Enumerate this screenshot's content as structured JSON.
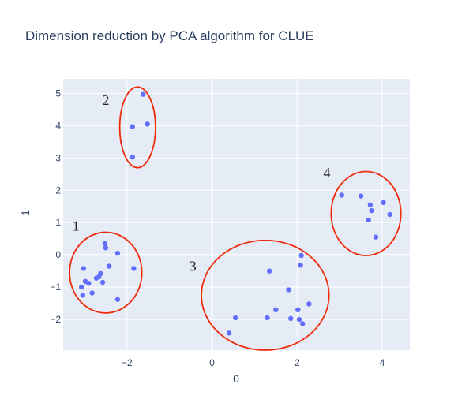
{
  "chart_data": {
    "type": "scatter",
    "title": "Dimension reduction by PCA algorithm for CLUE",
    "xlabel": "0",
    "ylabel": "1",
    "xlim": [
      -3.5,
      4.65
    ],
    "ylim": [
      -2.95,
      5.45
    ],
    "x_ticks": [
      -2,
      0,
      2,
      4
    ],
    "x_tick_labels": [
      "−2",
      "0",
      "2",
      "4"
    ],
    "y_ticks": [
      -2,
      -1,
      0,
      1,
      2,
      3,
      4,
      5
    ],
    "y_tick_labels": [
      "−2",
      "−1",
      "0",
      "1",
      "2",
      "3",
      "4",
      "5"
    ],
    "grid": true,
    "plot_bgcolor": "#e5ecf6",
    "marker_color": "#636efa",
    "annotation_color": "#ee2c0c",
    "series": [
      {
        "x": [
          -1.62,
          -1.52,
          -1.87,
          -1.87,
          -2.52,
          -2.5,
          -2.22,
          -2.42,
          -3.02,
          -2.98,
          -2.9,
          -2.62,
          -2.72,
          -2.66,
          -2.57,
          -2.82,
          -3.07,
          -3.04,
          -2.22,
          -1.84,
          1.35,
          1.3,
          1.5,
          1.8,
          2.02,
          2.08,
          2.1,
          2.28,
          1.85,
          2.05,
          2.13,
          0.55,
          0.4,
          3.05,
          3.5,
          3.72,
          3.75,
          4.03,
          4.18,
          3.68,
          3.85
        ],
        "y": [
          4.97,
          4.05,
          3.97,
          3.03,
          0.35,
          0.22,
          0.05,
          -0.35,
          -0.42,
          -0.82,
          -0.88,
          -0.58,
          -0.72,
          -0.68,
          -0.85,
          -1.18,
          -1.0,
          -1.25,
          -1.38,
          -0.42,
          -0.5,
          -1.95,
          -1.7,
          -1.08,
          -1.7,
          -0.32,
          -0.02,
          -1.52,
          -1.97,
          -2.0,
          -2.13,
          -1.95,
          -2.42,
          1.85,
          1.82,
          1.55,
          1.37,
          1.62,
          1.25,
          1.08,
          0.55
        ]
      }
    ],
    "annotations": {
      "groups": [
        {
          "label": "2",
          "cx": -1.75,
          "cy": 3.95,
          "rx": 0.42,
          "ry": 1.25,
          "label_x": -2.5,
          "label_y": 4.65
        },
        {
          "label": "1",
          "cx": -2.5,
          "cy": -0.55,
          "rx": 0.85,
          "ry": 1.25,
          "label_x": -3.2,
          "label_y": 0.75
        },
        {
          "label": "3",
          "cx": 1.25,
          "cy": -1.25,
          "rx": 1.5,
          "ry": 1.7,
          "label_x": -0.45,
          "label_y": -0.5
        },
        {
          "label": "4",
          "cx": 3.62,
          "cy": 1.28,
          "rx": 0.82,
          "ry": 1.3,
          "label_x": 2.7,
          "label_y": 2.4
        }
      ]
    }
  }
}
